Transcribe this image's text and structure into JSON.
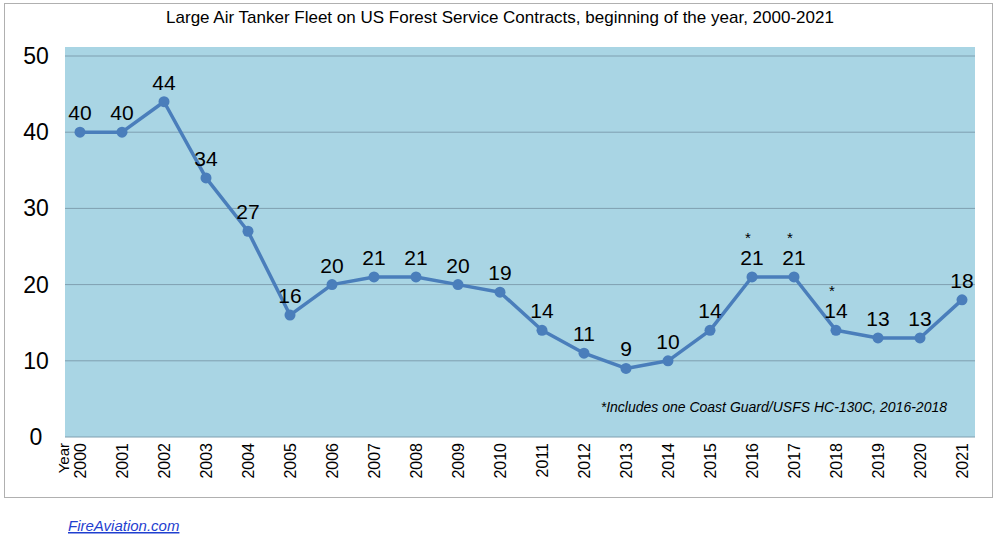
{
  "chart_data": {
    "type": "line",
    "title": "Large Air Tanker Fleet on US Forest Service Contracts, beginning of the year, 2000-2021",
    "x_label": "Year",
    "categories": [
      "2000",
      "2001",
      "2002",
      "2003",
      "2004",
      "2005",
      "2006",
      "2007",
      "2008",
      "2009",
      "2010",
      "2011",
      "2012",
      "2013",
      "2014",
      "2015",
      "2016",
      "2017",
      "2018",
      "2019",
      "2020",
      "2021"
    ],
    "values": [
      40,
      40,
      44,
      34,
      27,
      16,
      20,
      21,
      21,
      20,
      19,
      14,
      11,
      9,
      10,
      14,
      21,
      21,
      14,
      13,
      13,
      18
    ],
    "value_labels": [
      "40",
      "40",
      "44",
      "34",
      "27",
      "16",
      "20",
      "21",
      "21",
      "20",
      "19",
      "14",
      "11",
      "9",
      "10",
      "14",
      "21*",
      "21*",
      "14*",
      "13",
      "13",
      "18"
    ],
    "annotation": "*Includes one Coast Guard/USFS HC-130C, 2016-2018",
    "source": "FireAviation.com",
    "color": "#4a7ebb",
    "marker": "circle",
    "ylim": [
      0,
      50
    ],
    "yticks": [
      0,
      10,
      20,
      30,
      40,
      50
    ],
    "grid": true,
    "data_labels": true
  }
}
